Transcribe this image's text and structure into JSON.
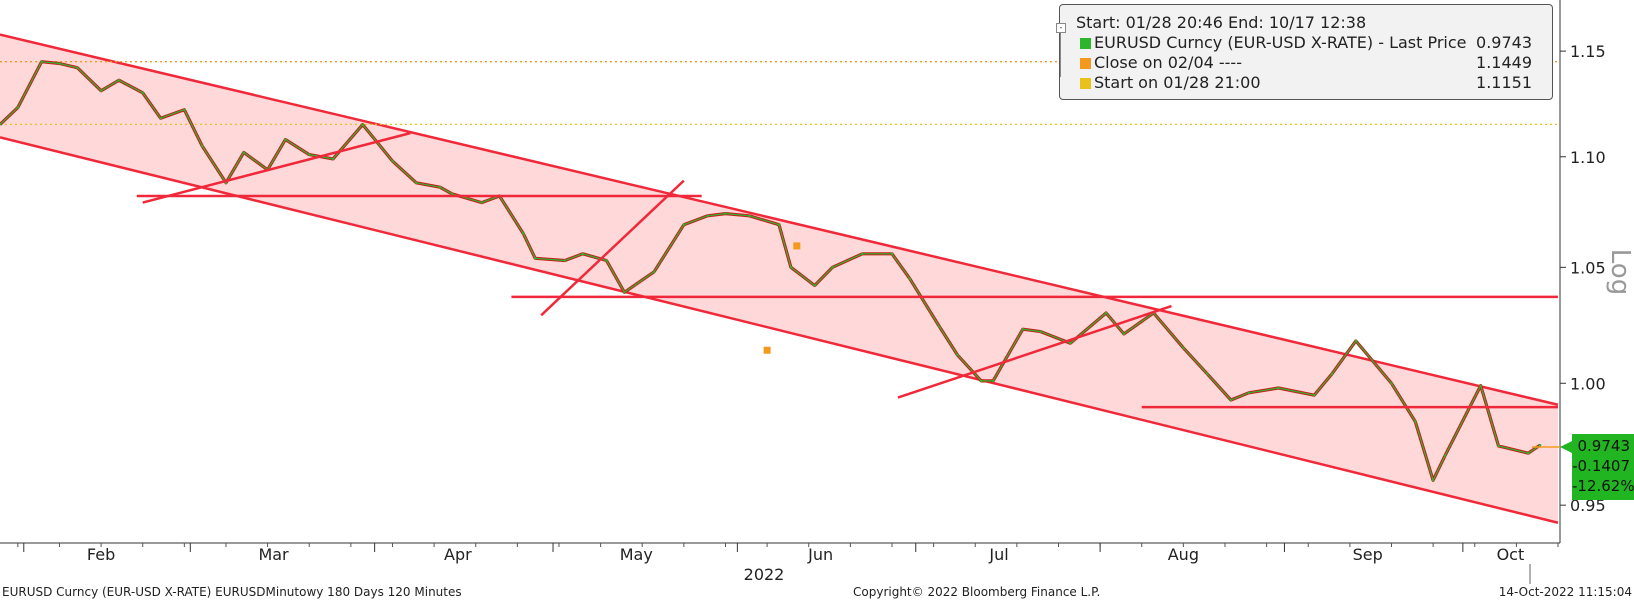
{
  "chart_data": {
    "type": "line",
    "title": "",
    "ylabel": "",
    "y_scale": "log",
    "y_scale_label": "Log",
    "ylim": [
      0.935,
      1.175
    ],
    "y_ticks": [
      0.95,
      1.0,
      1.05,
      1.1,
      1.15
    ],
    "y_tick_labels": [
      "0.95",
      "1.00",
      "1.05",
      "1.10",
      "1.15"
    ],
    "x_month_labels": [
      "Feb",
      "Mar",
      "Apr",
      "May",
      "Jun",
      "Jul",
      "Aug",
      "Sep",
      "Oct"
    ],
    "x_year_label": "2022",
    "grid": false,
    "legend_position": "top-right",
    "series": [
      {
        "name": "EURUSD Curncy (EUR-USD X-RATE) - Last Price",
        "color": "#2db52d",
        "x": [
          "2022-01-28",
          "2022-01-31",
          "2022-02-04",
          "2022-02-07",
          "2022-02-10",
          "2022-02-14",
          "2022-02-17",
          "2022-02-21",
          "2022-02-24",
          "2022-02-28",
          "2022-03-03",
          "2022-03-07",
          "2022-03-10",
          "2022-03-14",
          "2022-03-17",
          "2022-03-21",
          "2022-03-25",
          "2022-03-30",
          "2022-04-04",
          "2022-04-08",
          "2022-04-12",
          "2022-04-14",
          "2022-04-19",
          "2022-04-22",
          "2022-04-26",
          "2022-04-28",
          "2022-05-03",
          "2022-05-06",
          "2022-05-10",
          "2022-05-13",
          "2022-05-18",
          "2022-05-23",
          "2022-05-27",
          "2022-05-30",
          "2022-06-03",
          "2022-06-08",
          "2022-06-10",
          "2022-06-14",
          "2022-06-17",
          "2022-06-22",
          "2022-06-27",
          "2022-06-30",
          "2022-07-05",
          "2022-07-08",
          "2022-07-12",
          "2022-07-14",
          "2022-07-19",
          "2022-07-22",
          "2022-07-27",
          "2022-08-02",
          "2022-08-05",
          "2022-08-10",
          "2022-08-15",
          "2022-08-19",
          "2022-08-23",
          "2022-08-26",
          "2022-08-31",
          "2022-09-06",
          "2022-09-09",
          "2022-09-13",
          "2022-09-19",
          "2022-09-23",
          "2022-09-26",
          "2022-09-28",
          "2022-10-04",
          "2022-10-07",
          "2022-10-12",
          "2022-10-14"
        ],
        "values": [
          1.1151,
          1.123,
          1.1449,
          1.144,
          1.142,
          1.131,
          1.136,
          1.13,
          1.118,
          1.122,
          1.105,
          1.088,
          1.102,
          1.094,
          1.108,
          1.101,
          1.099,
          1.115,
          1.098,
          1.088,
          1.086,
          1.083,
          1.079,
          1.082,
          1.065,
          1.054,
          1.053,
          1.056,
          1.053,
          1.039,
          1.048,
          1.069,
          1.073,
          1.074,
          1.073,
          1.069,
          1.05,
          1.042,
          1.05,
          1.056,
          1.056,
          1.045,
          1.024,
          1.012,
          1.001,
          1.001,
          1.023,
          1.022,
          1.017,
          1.03,
          1.021,
          1.03,
          1.015,
          1.004,
          0.993,
          0.996,
          0.998,
          0.995,
          1.004,
          1.018,
          1.0,
          0.984,
          0.96,
          0.97,
          0.999,
          0.974,
          0.971,
          0.9743
        ]
      },
      {
        "name": "Close on 02/04 ----",
        "color": "#f39a1e",
        "value": 1.1449
      },
      {
        "name": "Start on 01/28 21:00",
        "color": "#e8c21a",
        "value": 1.1151
      }
    ],
    "channel": {
      "upper": {
        "x": [
          "2022-01-28",
          "2022-10-17"
        ],
        "y": [
          1.158,
          0.991
        ]
      },
      "lower": {
        "x": [
          "2022-01-28",
          "2022-10-17"
        ],
        "y": [
          1.109,
          0.943
        ]
      }
    },
    "trend_lines": [
      {
        "x": [
          "2022-02-21",
          "2022-04-07"
        ],
        "y": [
          1.079,
          1.111
        ]
      },
      {
        "x": [
          "2022-02-20",
          "2022-05-26"
        ],
        "y": [
          1.082,
          1.082
        ]
      },
      {
        "x": [
          "2022-04-29",
          "2022-05-23"
        ],
        "y": [
          1.029,
          1.089
        ]
      },
      {
        "x": [
          "2022-04-24",
          "2022-10-17"
        ],
        "y": [
          1.037,
          1.037
        ]
      },
      {
        "x": [
          "2022-06-28",
          "2022-08-13"
        ],
        "y": [
          0.994,
          1.033
        ]
      },
      {
        "x": [
          "2022-08-08",
          "2022-10-17"
        ],
        "y": [
          0.99,
          0.99
        ]
      }
    ],
    "markers": [
      {
        "x": "2022-06-11",
        "y": 1.0595
      },
      {
        "x": "2022-06-06",
        "y": 1.014
      }
    ]
  },
  "legend": {
    "header": "Start: 01/28 20:46 End: 10/17 12:38",
    "entries": [
      {
        "label": "EURUSD Curncy (EUR-USD X-RATE) - Last Price",
        "value": "0.9743",
        "color": "#2db52d"
      },
      {
        "label": "Close on 02/04 ----",
        "value": "1.1449",
        "color": "#f39a1e"
      },
      {
        "label": "Start on 01/28 21:00",
        "value": "1.1151",
        "color": "#e8c21a"
      }
    ]
  },
  "price_badge": {
    "last": "0.9743",
    "change": "-0.1407",
    "change_pct": "-12.62%",
    "color": "#22b522"
  },
  "footer": {
    "left": "EURUSD Curncy (EUR-USD X-RATE) EURUSDMinutowy 180 Days 120 Minutes",
    "center": "Copyright© 2022 Bloomberg Finance L.P.",
    "right": "14-Oct-2022 11:15:04"
  }
}
